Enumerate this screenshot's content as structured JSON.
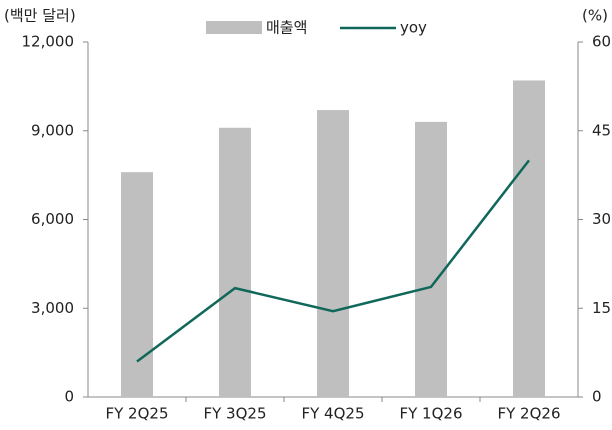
{
  "chart_data": {
    "type": "bar_line",
    "y_label": "(백만 달러)",
    "y2_label": "(%)",
    "categories": [
      "FY 2Q25",
      "FY 3Q25",
      "FY 4Q25",
      "FY 1Q26",
      "FY 2Q26"
    ],
    "series": [
      {
        "name": "매출액",
        "type": "bar",
        "color": "#bfbfbf",
        "values": [
          7600,
          9100,
          9700,
          9300,
          10700
        ]
      },
      {
        "name": "yoy",
        "type": "line",
        "axis": "y2",
        "color": "#10685b",
        "values": [
          6,
          18.4,
          14.5,
          18.6,
          40
        ]
      }
    ],
    "ylim": [
      0,
      12000
    ],
    "yticks": [
      0,
      {
        "value": 3000,
        "label": "3,000"
      },
      {
        "value": 6000,
        "label": "6,000"
      },
      {
        "value": 9000,
        "label": "9,000"
      },
      {
        "value": 12000,
        "label": "12,000"
      }
    ],
    "y2lim": [
      0,
      60
    ],
    "y2ticks": [
      0,
      15,
      30,
      45,
      60
    ],
    "grid": false,
    "legend": "top"
  }
}
